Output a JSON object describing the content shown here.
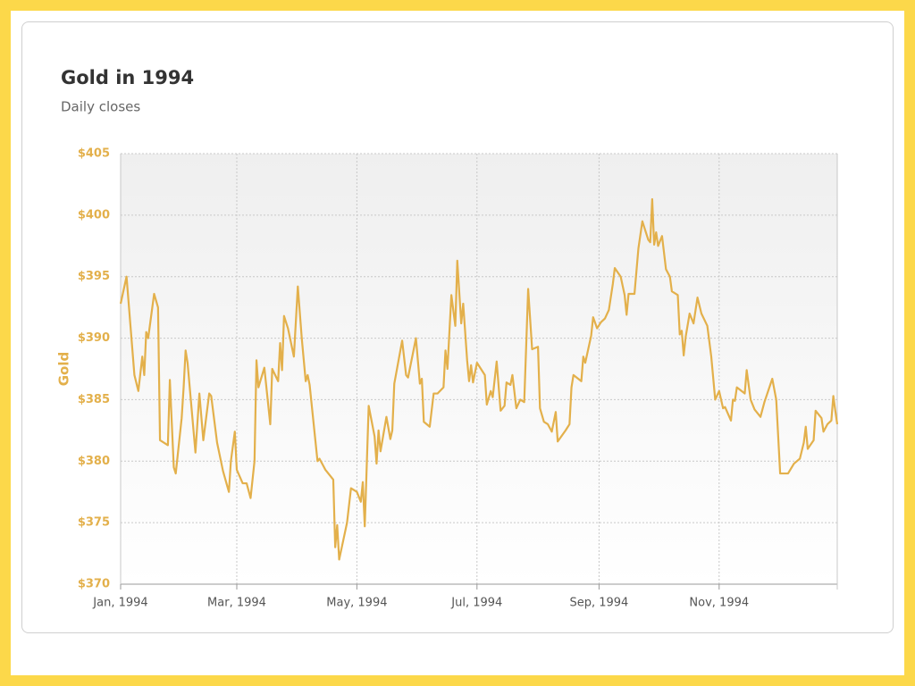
{
  "chart_data": {
    "type": "line",
    "title": "Gold in 1994",
    "subtitle": "Daily closes",
    "y_label": "Gold",
    "color": "#e3b04b",
    "grid": true,
    "xlim": [
      "1994-01-01",
      "1994-12-31"
    ],
    "xticks": [
      {
        "value": "1994-01-01",
        "label": "Jan, 1994"
      },
      {
        "value": "1994-03-01",
        "label": "Mar, 1994"
      },
      {
        "value": "1994-05-01",
        "label": "May, 1994"
      },
      {
        "value": "1994-07-01",
        "label": "Jul, 1994"
      },
      {
        "value": "1994-09-01",
        "label": "Sep, 1994"
      },
      {
        "value": "1994-11-01",
        "label": "Nov, 1994"
      }
    ],
    "ylim": [
      370,
      405
    ],
    "yticks": [
      {
        "value": 370,
        "label": "$370"
      },
      {
        "value": 375,
        "label": "$375"
      },
      {
        "value": 380,
        "label": "$380"
      },
      {
        "value": 385,
        "label": "$385"
      },
      {
        "value": 390,
        "label": "$390"
      },
      {
        "value": 395,
        "label": "$395"
      },
      {
        "value": 400,
        "label": "$400"
      },
      {
        "value": 405,
        "label": "$405"
      }
    ],
    "x": [
      "1994-01-01",
      "1994-01-04",
      "1994-01-08",
      "1994-01-10",
      "1994-01-12",
      "1994-01-13",
      "1994-01-14",
      "1994-01-15",
      "1994-01-18",
      "1994-01-20",
      "1994-01-21",
      "1994-01-25",
      "1994-01-26",
      "1994-01-28",
      "1994-01-29",
      "1994-02-01",
      "1994-02-02",
      "1994-02-03",
      "1994-02-04",
      "1994-02-08",
      "1994-02-10",
      "1994-02-12",
      "1994-02-15",
      "1994-02-16",
      "1994-02-19",
      "1994-02-22",
      "1994-02-25",
      "1994-02-26",
      "1994-02-28",
      "1994-03-01",
      "1994-03-04",
      "1994-03-06",
      "1994-03-08",
      "1994-03-10",
      "1994-03-11",
      "1994-03-12",
      "1994-03-15",
      "1994-03-18",
      "1994-03-19",
      "1994-03-22",
      "1994-03-23",
      "1994-03-24",
      "1994-03-25",
      "1994-03-27",
      "1994-03-30",
      "1994-04-01",
      "1994-04-03",
      "1994-04-05",
      "1994-04-06",
      "1994-04-07",
      "1994-04-11",
      "1994-04-12",
      "1994-04-14",
      "1994-04-15",
      "1994-04-19",
      "1994-04-20",
      "1994-04-21",
      "1994-04-22",
      "1994-04-26",
      "1994-04-28",
      "1994-05-01",
      "1994-05-03",
      "1994-05-04",
      "1994-05-05",
      "1994-05-07",
      "1994-05-10",
      "1994-05-11",
      "1994-05-12",
      "1994-05-13",
      "1994-05-16",
      "1994-05-18",
      "1994-05-19",
      "1994-05-20",
      "1994-05-24",
      "1994-05-26",
      "1994-05-27",
      "1994-05-31",
      "1994-06-02",
      "1994-06-03",
      "1994-06-04",
      "1994-06-07",
      "1994-06-09",
      "1994-06-11",
      "1994-06-14",
      "1994-06-15",
      "1994-06-16",
      "1994-06-18",
      "1994-06-20",
      "1994-06-21",
      "1994-06-23",
      "1994-06-24",
      "1994-06-26",
      "1994-06-27",
      "1994-06-28",
      "1994-06-29",
      "1994-07-01",
      "1994-07-05",
      "1994-07-06",
      "1994-07-08",
      "1994-07-09",
      "1994-07-11",
      "1994-07-13",
      "1994-07-15",
      "1994-07-16",
      "1994-07-18",
      "1994-07-19",
      "1994-07-21",
      "1994-07-23",
      "1994-07-25",
      "1994-07-27",
      "1994-07-29",
      "1994-08-01",
      "1994-08-02",
      "1994-08-04",
      "1994-08-06",
      "1994-08-08",
      "1994-08-10",
      "1994-08-11",
      "1994-08-15",
      "1994-08-17",
      "1994-08-18",
      "1994-08-19",
      "1994-08-23",
      "1994-08-24",
      "1994-08-25",
      "1994-08-28",
      "1994-08-29",
      "1994-08-31",
      "1994-09-02",
      "1994-09-04",
      "1994-09-06",
      "1994-09-08",
      "1994-09-09",
      "1994-09-12",
      "1994-09-14",
      "1994-09-15",
      "1994-09-16",
      "1994-09-19",
      "1994-09-21",
      "1994-09-23",
      "1994-09-26",
      "1994-09-27",
      "1994-09-28",
      "1994-09-29",
      "1994-09-30",
      "1994-10-01",
      "1994-10-03",
      "1994-10-05",
      "1994-10-07",
      "1994-10-08",
      "1994-10-11",
      "1994-10-12",
      "1994-10-13",
      "1994-10-14",
      "1994-10-15",
      "1994-10-17",
      "1994-10-19",
      "1994-10-21",
      "1994-10-23",
      "1994-10-26",
      "1994-10-28",
      "1994-10-30",
      "1994-11-01",
      "1994-11-03",
      "1994-11-04",
      "1994-11-07",
      "1994-11-08",
      "1994-11-09",
      "1994-11-10",
      "1994-11-14",
      "1994-11-15",
      "1994-11-17",
      "1994-11-19",
      "1994-11-22",
      "1994-11-24",
      "1994-11-28",
      "1994-11-30",
      "1994-12-02",
      "1994-12-06",
      "1994-12-09",
      "1994-12-12",
      "1994-12-14",
      "1994-12-15",
      "1994-12-16",
      "1994-12-19",
      "1994-12-20",
      "1994-12-23",
      "1994-12-24",
      "1994-12-26",
      "1994-12-28",
      "1994-12-29",
      "1994-12-30",
      "1994-12-31"
    ],
    "values": [
      392.8,
      395,
      387,
      385.7,
      388.5,
      387,
      390.5,
      390,
      393.6,
      392.5,
      381.7,
      381.3,
      386.6,
      379.5,
      379,
      383.5,
      386,
      389,
      388,
      380.7,
      385.5,
      381.7,
      385.5,
      385.3,
      381.5,
      379.2,
      377.5,
      380,
      382.4,
      379.3,
      378.2,
      378.2,
      377,
      380,
      388.2,
      386,
      387.6,
      383,
      387.5,
      386.5,
      389.6,
      387.4,
      391.8,
      390.8,
      388.5,
      394.2,
      390,
      386.5,
      387,
      386.2,
      380,
      380.2,
      379.6,
      379.3,
      378.5,
      373,
      374.8,
      372,
      375,
      377.8,
      377.5,
      376.7,
      378.3,
      374.7,
      384.5,
      382,
      379.8,
      382.5,
      380.8,
      383.6,
      381.8,
      382.5,
      386.3,
      389.8,
      387,
      386.8,
      390,
      386.3,
      386.7,
      383.2,
      382.8,
      385.5,
      385.5,
      386,
      389,
      387.5,
      393.5,
      391,
      396.3,
      391.2,
      392.8,
      388.2,
      386.5,
      387.8,
      386.4,
      388,
      387,
      384.6,
      385.7,
      385.2,
      388.1,
      384.1,
      384.5,
      386.4,
      386.2,
      387,
      384.3,
      385,
      384.8,
      394,
      389.1,
      389.3,
      384.3,
      383.2,
      383,
      382.4,
      384,
      381.6,
      382.5,
      383,
      386,
      387,
      386.5,
      388.5,
      388,
      390.2,
      391.7,
      390.8,
      391.3,
      391.6,
      392.3,
      394.4,
      395.7,
      395,
      393.5,
      391.9,
      393.6,
      393.6,
      397.3,
      399.5,
      398,
      397.8,
      401.3,
      397.6,
      398.6,
      397.5,
      398.3,
      395.6,
      395,
      393.8,
      393.5,
      390.3,
      390.6,
      388.6,
      390.1,
      392,
      391.2,
      393.3,
      392,
      391,
      388.5,
      385,
      385.7,
      384.3,
      384.4,
      383.3,
      385,
      384.9,
      386,
      385.5,
      387.4,
      385,
      384.2,
      383.6,
      384.8,
      386.7,
      385,
      379,
      379,
      379.8,
      380.2,
      381.5,
      382.8,
      381,
      381.7,
      384.1,
      383.5,
      382.4,
      383,
      383.3,
      385.3,
      384.1,
      383
    ]
  }
}
